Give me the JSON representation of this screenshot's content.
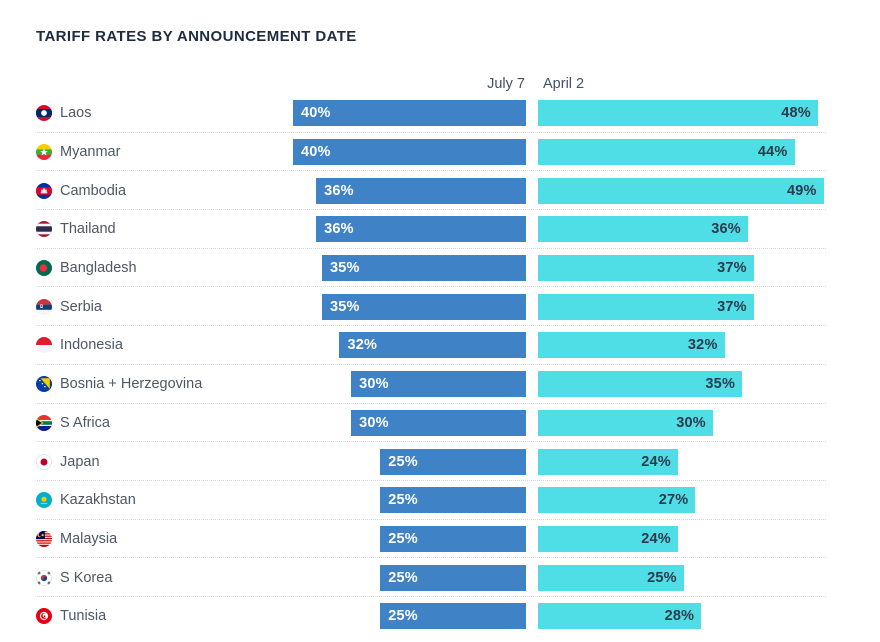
{
  "title": "TARIFF RATES BY ANNOUNCEMENT DATE",
  "headers": {
    "left": "July 7",
    "right": "April 2"
  },
  "colors": {
    "july_bar": "#3f82c6",
    "april_bar": "#4fdde6",
    "title_text": "#1d2c3f",
    "category_text": "#4d5866",
    "value_on_july": "#ffffff",
    "value_on_april": "#2c3a4c",
    "separator": "#d4d6d9"
  },
  "chart_data": {
    "type": "bar",
    "orientation": "horizontal",
    "title": "TARIFF RATES BY ANNOUNCEMENT DATE",
    "categories": [
      "Laos",
      "Myanmar",
      "Cambodia",
      "Thailand",
      "Bangladesh",
      "Serbia",
      "Indonesia",
      "Bosnia + Herzegovina",
      "S Africa",
      "Japan",
      "Kazakhstan",
      "Malaysia",
      "S Korea",
      "Tunisia"
    ],
    "flags": [
      "laos",
      "myanmar",
      "cambodia",
      "thailand",
      "bangladesh",
      "serbia",
      "indonesia",
      "bosnia",
      "s-africa",
      "japan",
      "kazakhstan",
      "malaysia",
      "s-korea",
      "tunisia"
    ],
    "series": [
      {
        "name": "July 7",
        "values": [
          40,
          40,
          36,
          36,
          35,
          35,
          32,
          30,
          30,
          25,
          25,
          25,
          25,
          25
        ]
      },
      {
        "name": "April 2",
        "values": [
          48,
          44,
          49,
          36,
          37,
          37,
          32,
          35,
          30,
          24,
          27,
          24,
          25,
          28
        ]
      }
    ],
    "value_suffix": "%",
    "value_range": [
      0,
      49
    ],
    "legend_position": "top",
    "grid": "dotted-row-separators"
  }
}
